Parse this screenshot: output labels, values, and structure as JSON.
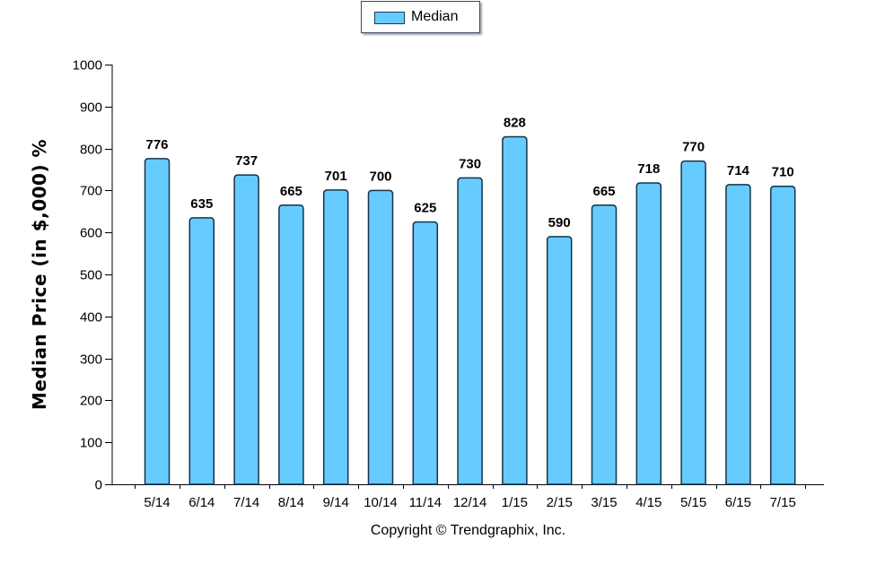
{
  "legend": {
    "label": "Median",
    "swatch_color": "#66ccff"
  },
  "copyright": "Copyright © Trendgraphix, Inc.",
  "chart_data": {
    "type": "bar",
    "title": "",
    "xlabel": "",
    "ylabel": "Median Price (in $,000) %",
    "ylim": [
      0,
      1000
    ],
    "yticks": [
      0,
      100,
      200,
      300,
      400,
      500,
      600,
      700,
      800,
      900,
      1000
    ],
    "grid": false,
    "legend_position": "top-center",
    "categories": [
      "5/14",
      "6/14",
      "7/14",
      "8/14",
      "9/14",
      "10/14",
      "11/14",
      "12/14",
      "1/15",
      "2/15",
      "3/15",
      "4/15",
      "5/15",
      "6/15",
      "7/15"
    ],
    "series": [
      {
        "name": "Median",
        "color": "#66ccff",
        "values": [
          776,
          635,
          737,
          665,
          701,
          700,
          625,
          730,
          828,
          590,
          665,
          718,
          770,
          714,
          710
        ]
      }
    ]
  }
}
